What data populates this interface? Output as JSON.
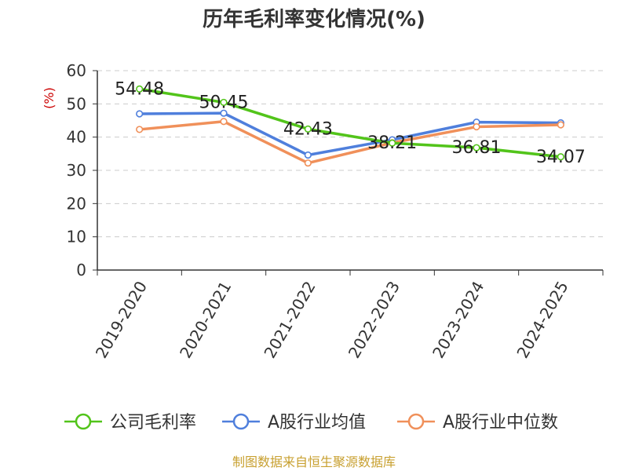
{
  "chart_data": {
    "type": "line",
    "title": "历年毛利率变化情况(%)",
    "ylabel": "(%)",
    "xlabel": "",
    "ylim": [
      0,
      60
    ],
    "yticks": [
      0,
      10,
      20,
      30,
      40,
      50,
      60
    ],
    "grid": true,
    "legend_position": "bottom",
    "categories": [
      "2019-2020",
      "2020-2021",
      "2021-2022",
      "2022-2023",
      "2023-2024",
      "2024-2025"
    ],
    "series": [
      {
        "name": "公司毛利率",
        "color": "#52c41a",
        "values": [
          54.48,
          50.45,
          42.43,
          38.21,
          36.81,
          34.07
        ],
        "labels": [
          "54.48",
          "50.45",
          "42.43",
          "38.21",
          "36.81",
          "34.07"
        ]
      },
      {
        "name": "A股行业均值",
        "color": "#4f7fdc",
        "values": [
          47.0,
          47.2,
          34.6,
          39.2,
          44.5,
          44.3
        ]
      },
      {
        "name": "A股行业中位数",
        "color": "#f0905a",
        "values": [
          42.3,
          44.7,
          32.2,
          38.3,
          43.1,
          43.7
        ]
      }
    ]
  },
  "source_note": "制图数据来自恒生聚源数据库"
}
